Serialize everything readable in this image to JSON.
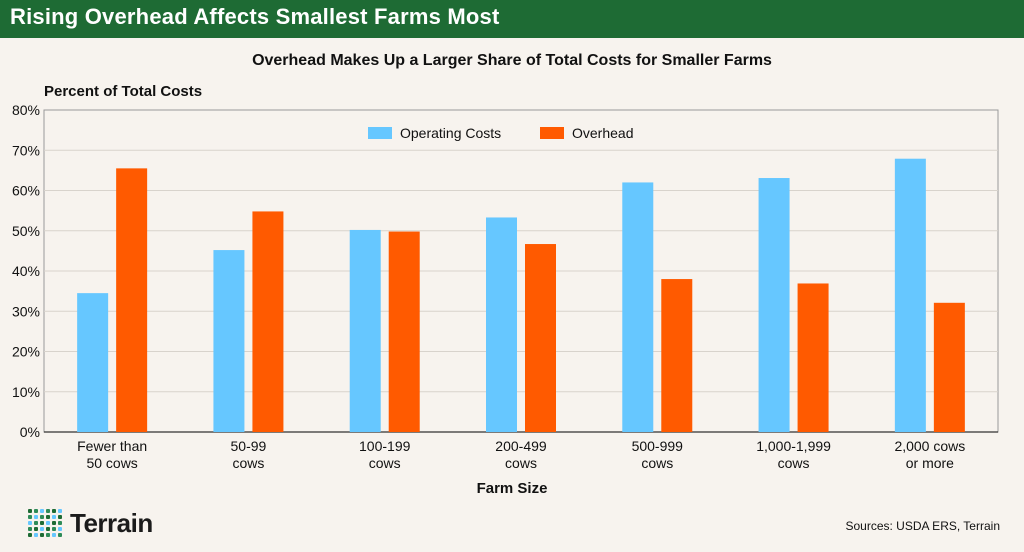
{
  "header": {
    "title": "Rising Overhead Affects Smallest Farms Most",
    "banner_color": "#1e6b34"
  },
  "footer": {
    "logo_text": "Terrain",
    "logo_icon": "dot-grid-icon",
    "source": "Sources: USDA ERS, Terrain"
  },
  "colors": {
    "operating": "#66c7ff",
    "overhead": "#ff5a00",
    "grid": "#d8d3cc",
    "background": "#f7f3ee"
  },
  "chart_data": {
    "type": "bar",
    "title": "Overhead Makes Up a Larger Share of Total Costs for Smaller Farms",
    "ylabel": "Percent of Total Costs",
    "xlabel": "Farm Size",
    "ylim": [
      0,
      80
    ],
    "yticks": [
      "0%",
      "10%",
      "20%",
      "30%",
      "40%",
      "50%",
      "60%",
      "70%",
      "80%"
    ],
    "grid": true,
    "legend_position": "top-center",
    "categories": [
      [
        "Fewer than",
        "50 cows"
      ],
      [
        "50-99",
        "cows"
      ],
      [
        "100-199",
        "cows"
      ],
      [
        "200-499",
        "cows"
      ],
      [
        "500-999",
        "cows"
      ],
      [
        "1,000-1,999",
        "cows"
      ],
      [
        "2,000 cows",
        "or more"
      ]
    ],
    "series": [
      {
        "name": "Operating Costs",
        "values": [
          34.5,
          45.2,
          50.2,
          53.3,
          62.0,
          63.1,
          67.9
        ]
      },
      {
        "name": "Overhead",
        "values": [
          65.5,
          54.8,
          49.8,
          46.7,
          38.0,
          36.9,
          32.1
        ]
      }
    ]
  }
}
